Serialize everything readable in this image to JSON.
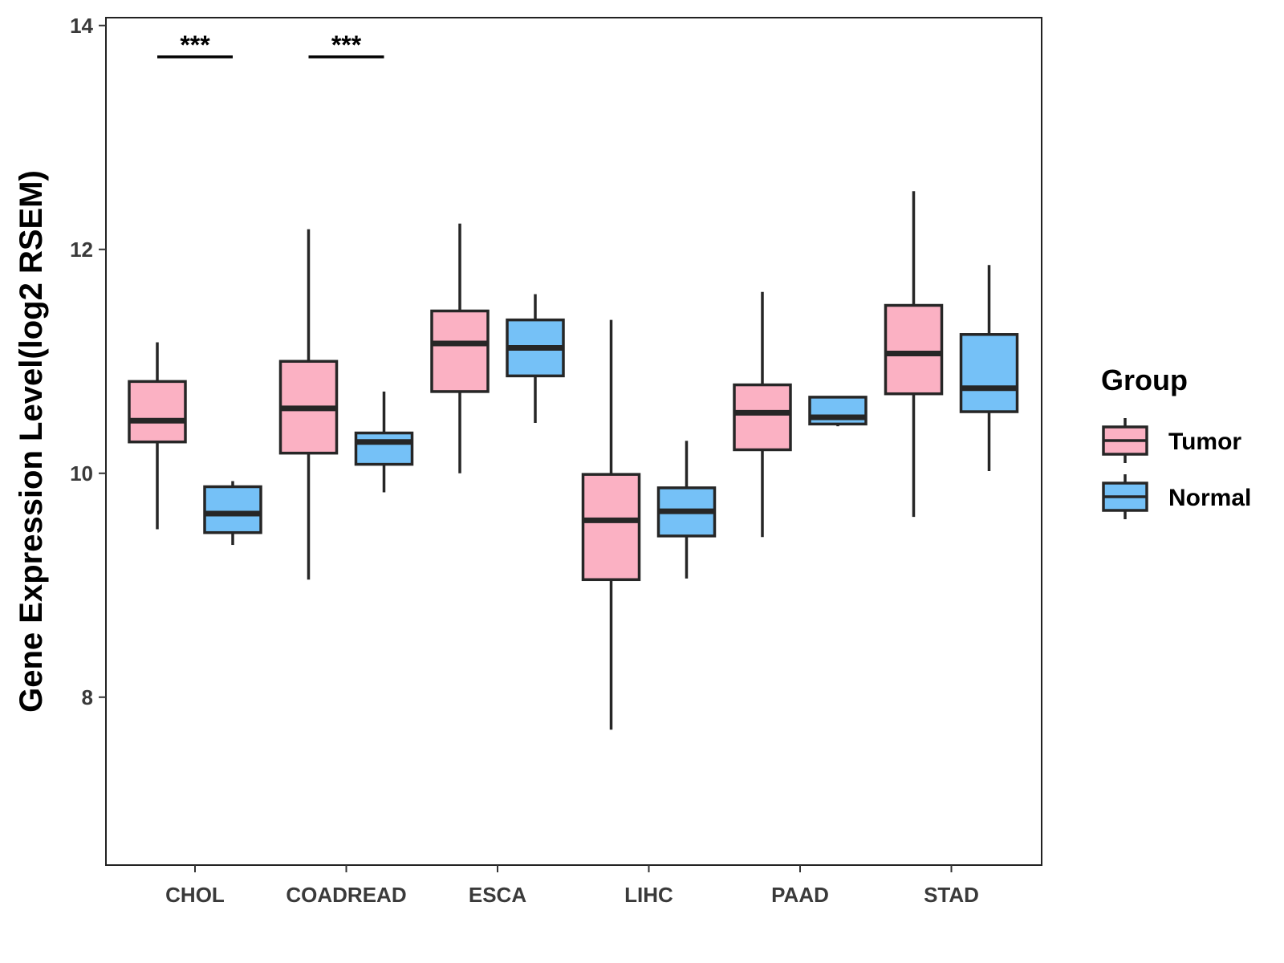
{
  "chart_data": {
    "type": "boxplot",
    "title": "",
    "xlabel": "",
    "ylabel": "Gene Expression Level(log2 RSEM)",
    "ylim": [
      6.5,
      14.07
    ],
    "yticks": [
      8,
      10,
      12,
      14
    ],
    "ytick_labels": [
      "8",
      "10",
      "12",
      "14"
    ],
    "grid": false,
    "categories": [
      "CHOL",
      "COADREAD",
      "ESCA",
      "LIHC",
      "PAAD",
      "STAD"
    ],
    "legend": {
      "title": "Group",
      "position": "right",
      "entries": [
        {
          "name": "Tumor",
          "color": "#fbb1c3"
        },
        {
          "name": "Normal",
          "color": "#75c1f7"
        }
      ]
    },
    "series": [
      {
        "name": "Tumor",
        "color": "#fbb1c3",
        "boxes": [
          {
            "category": "CHOL",
            "whisker_low": 9.5,
            "q1": 10.28,
            "median": 10.47,
            "q3": 10.82,
            "whisker_high": 11.17
          },
          {
            "category": "COADREAD",
            "whisker_low": 9.05,
            "q1": 10.18,
            "median": 10.58,
            "q3": 11.0,
            "whisker_high": 12.18
          },
          {
            "category": "ESCA",
            "whisker_low": 10.0,
            "q1": 10.73,
            "median": 11.16,
            "q3": 11.45,
            "whisker_high": 12.23
          },
          {
            "category": "LIHC",
            "whisker_low": 7.71,
            "q1": 9.05,
            "median": 9.58,
            "q3": 9.99,
            "whisker_high": 11.37
          },
          {
            "category": "PAAD",
            "whisker_low": 9.43,
            "q1": 10.21,
            "median": 10.54,
            "q3": 10.79,
            "whisker_high": 11.62
          },
          {
            "category": "STAD",
            "whisker_low": 9.61,
            "q1": 10.71,
            "median": 11.07,
            "q3": 11.5,
            "whisker_high": 12.52
          }
        ]
      },
      {
        "name": "Normal",
        "color": "#75c1f7",
        "boxes": [
          {
            "category": "CHOL",
            "whisker_low": 9.36,
            "q1": 9.47,
            "median": 9.64,
            "q3": 9.88,
            "whisker_high": 9.93
          },
          {
            "category": "COADREAD",
            "whisker_low": 9.83,
            "q1": 10.08,
            "median": 10.28,
            "q3": 10.36,
            "whisker_high": 10.73
          },
          {
            "category": "ESCA",
            "whisker_low": 10.45,
            "q1": 10.87,
            "median": 11.12,
            "q3": 11.37,
            "whisker_high": 11.6
          },
          {
            "category": "LIHC",
            "whisker_low": 9.06,
            "q1": 9.44,
            "median": 9.66,
            "q3": 9.87,
            "whisker_high": 10.29
          },
          {
            "category": "PAAD",
            "whisker_low": 10.42,
            "q1": 10.44,
            "median": 10.5,
            "q3": 10.68,
            "whisker_high": 10.68
          },
          {
            "category": "STAD",
            "whisker_low": 10.02,
            "q1": 10.55,
            "median": 10.76,
            "q3": 11.24,
            "whisker_high": 11.86
          }
        ]
      }
    ],
    "annotations": [
      {
        "category": "CHOL",
        "label": "***",
        "y": 13.72
      },
      {
        "category": "COADREAD",
        "label": "***",
        "y": 13.72
      }
    ]
  }
}
